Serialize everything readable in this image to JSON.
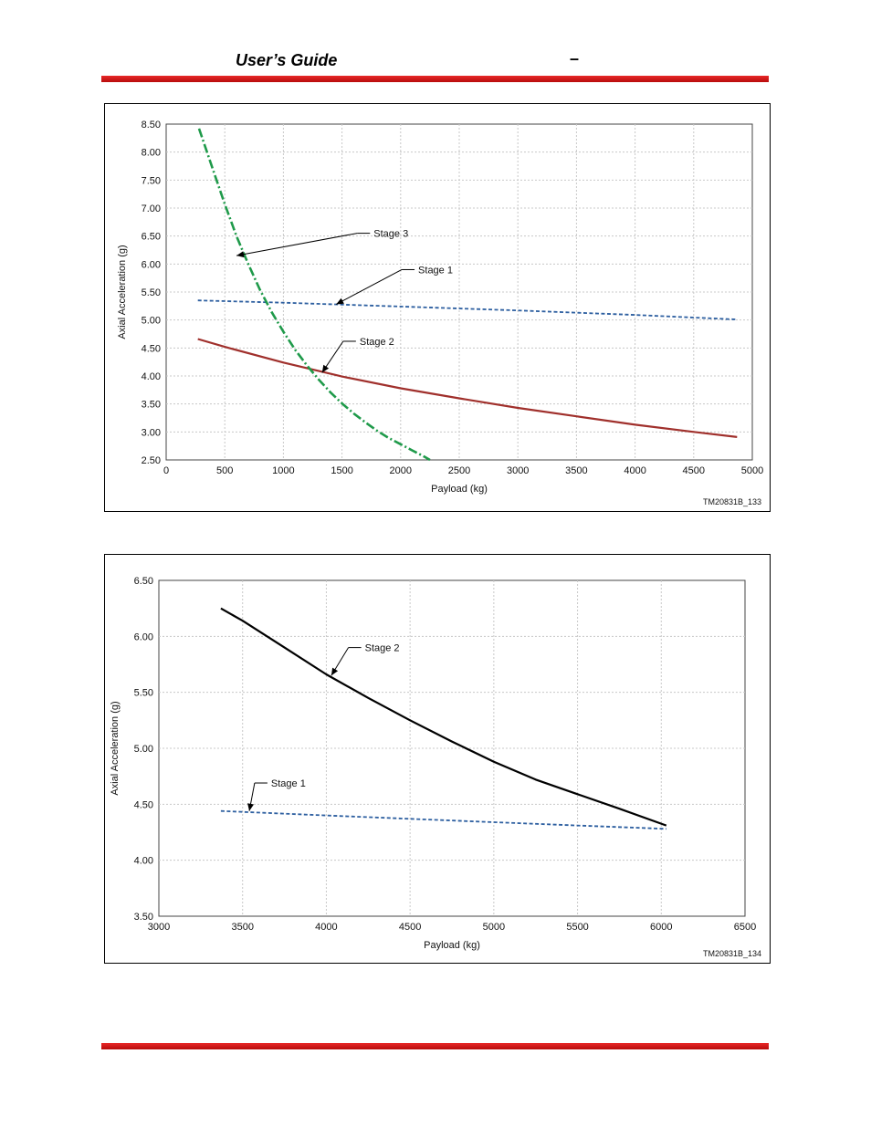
{
  "header": {
    "title": "User’s Guide",
    "separator": "–"
  },
  "colors": {
    "rule": "#d41a1a",
    "stage1": "#2d5fa0",
    "stage2_chart1": "#a0302c",
    "stage3": "#1f9a4a",
    "stage2_chart2": "#000000",
    "grid": "#c8c8c8"
  },
  "chart_data": [
    {
      "type": "line",
      "title": "",
      "xlabel": "Payload (kg)",
      "ylabel": "Axial Acceleration (g)",
      "xlim": [
        0,
        5000
      ],
      "ylim": [
        2.5,
        8.5
      ],
      "xticks": [
        0,
        500,
        1000,
        1500,
        2000,
        2500,
        3000,
        3500,
        4000,
        4500,
        5000
      ],
      "yticks": [
        2.5,
        3.0,
        3.5,
        4.0,
        4.5,
        5.0,
        5.5,
        6.0,
        6.5,
        7.0,
        7.5,
        8.0,
        8.5
      ],
      "grid": true,
      "code": "TM20831B_133",
      "series": [
        {
          "name": "Stage 1",
          "style": "dashed",
          "color": "#2d5fa0",
          "x": [
            270,
            1000,
            2000,
            3000,
            4000,
            4870
          ],
          "y": [
            5.35,
            5.31,
            5.24,
            5.17,
            5.09,
            5.01
          ]
        },
        {
          "name": "Stage 2",
          "style": "solid",
          "color": "#a0302c",
          "x": [
            270,
            500,
            1000,
            1500,
            2000,
            2500,
            3000,
            3500,
            4000,
            4500,
            4870
          ],
          "y": [
            4.66,
            4.52,
            4.24,
            3.99,
            3.78,
            3.6,
            3.43,
            3.28,
            3.13,
            3.0,
            2.91
          ]
        },
        {
          "name": "Stage 3",
          "style": "dashdot",
          "color": "#1f9a4a",
          "x": [
            280,
            400,
            500,
            600,
            700,
            800,
            900,
            1000,
            1100,
            1200,
            1300,
            1400,
            1500,
            1600,
            1700,
            1800,
            1900,
            2000,
            2100,
            2200,
            2250
          ],
          "y": [
            8.42,
            7.68,
            7.07,
            6.5,
            6.0,
            5.54,
            5.14,
            4.79,
            4.47,
            4.19,
            3.94,
            3.71,
            3.51,
            3.33,
            3.17,
            3.02,
            2.89,
            2.78,
            2.67,
            2.56,
            2.5
          ]
        }
      ],
      "annotations": [
        {
          "label": "Stage 3",
          "x": 1770,
          "y": 6.55,
          "arrow_x": 600,
          "arrow_y": 6.15
        },
        {
          "label": "Stage 1",
          "x": 2150,
          "y": 5.9,
          "arrow_x": 1450,
          "arrow_y": 5.28
        },
        {
          "label": "Stage 2",
          "x": 1650,
          "y": 4.62,
          "arrow_x": 1330,
          "arrow_y": 4.06
        }
      ]
    },
    {
      "type": "line",
      "title": "",
      "xlabel": "Payload (kg)",
      "ylabel": "Axial Acceleration (g)",
      "xlim": [
        3000,
        6500
      ],
      "ylim": [
        3.5,
        6.5
      ],
      "xticks": [
        3000,
        3500,
        4000,
        4500,
        5000,
        5500,
        6000,
        6500
      ],
      "yticks": [
        3.5,
        4.0,
        4.5,
        5.0,
        5.5,
        6.0,
        6.5
      ],
      "grid": true,
      "code": "TM20831B_134",
      "series": [
        {
          "name": "Stage 2",
          "style": "solid",
          "color": "#000000",
          "x": [
            3370,
            3500,
            3750,
            4000,
            4250,
            4500,
            4750,
            5000,
            5250,
            5500,
            5750,
            6030
          ],
          "y": [
            6.25,
            6.14,
            5.9,
            5.66,
            5.45,
            5.25,
            5.06,
            4.88,
            4.72,
            4.59,
            4.46,
            4.31
          ]
        },
        {
          "name": "Stage 1",
          "style": "dashed",
          "color": "#2d5fa0",
          "x": [
            3370,
            4000,
            4500,
            5000,
            5500,
            6030
          ],
          "y": [
            4.44,
            4.4,
            4.37,
            4.34,
            4.31,
            4.28
          ]
        }
      ],
      "annotations": [
        {
          "label": "Stage 2",
          "x": 4230,
          "y": 5.9,
          "arrow_x": 4030,
          "arrow_y": 5.65
        },
        {
          "label": "Stage 1",
          "x": 3670,
          "y": 4.69,
          "arrow_x": 3540,
          "arrow_y": 4.44
        }
      ]
    }
  ]
}
